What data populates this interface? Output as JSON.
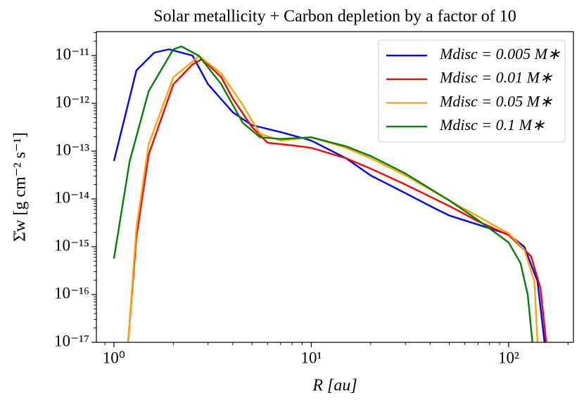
{
  "chart_data": {
    "type": "line",
    "title": "Solar metallicity + Carbon depletion by a factor of 10",
    "xlabel": "R [au]",
    "ylabel": "Σ̇w [g cm⁻² s⁻¹]",
    "xscale": "log",
    "yscale": "log",
    "xlim": [
      0.815,
      213
    ],
    "ylim": [
      1e-17,
      3.162e-11
    ],
    "xticks": [
      {
        "value": 1,
        "label": "10⁰"
      },
      {
        "value": 10,
        "label": "10¹"
      },
      {
        "value": 100,
        "label": "10²"
      }
    ],
    "yticks": [
      {
        "value": 1e-17,
        "label": "10⁻¹⁷"
      },
      {
        "value": 1e-16,
        "label": "10⁻¹⁶"
      },
      {
        "value": 1e-15,
        "label": "10⁻¹⁵"
      },
      {
        "value": 1e-14,
        "label": "10⁻¹⁴"
      },
      {
        "value": 1e-13,
        "label": "10⁻¹³"
      },
      {
        "value": 1e-12,
        "label": "10⁻¹²"
      },
      {
        "value": 1e-11,
        "label": "10⁻¹¹"
      }
    ],
    "legend": "upper right",
    "series": [
      {
        "name": "Mdisc = 0.005 M∗",
        "color": "#0000ff",
        "x": [
          1,
          1.3,
          1.6,
          1.9,
          2.5,
          3,
          4,
          5,
          7,
          10,
          15,
          20,
          30,
          40,
          50,
          70,
          100,
          120,
          140,
          152
        ],
        "values": [
          6.2e-14,
          4.9e-12,
          1.15e-11,
          1.35e-11,
          1e-11,
          2.5e-12,
          6.5e-13,
          3.5e-13,
          2.5e-13,
          1.66e-13,
          7.1e-14,
          3.1e-14,
          1.32e-14,
          7.1e-15,
          4.5e-15,
          2.9e-15,
          1.8e-15,
          1e-15,
          1.9e-16,
          1e-17
        ]
      },
      {
        "name": "Mdisc = 0.01 M∗",
        "color": "#ff0000",
        "x": [
          1.18,
          1.3,
          1.5,
          2,
          2.5,
          2.8,
          3.5,
          4,
          5,
          6,
          8,
          10,
          15,
          20,
          30,
          50,
          70,
          100,
          130,
          145,
          155
        ],
        "values": [
          1e-17,
          1.6e-15,
          8.5e-14,
          2.5e-12,
          6.5e-12,
          8.5e-12,
          3.5e-12,
          1.26e-12,
          3.2e-13,
          1.5e-13,
          1.32e-13,
          1.17e-13,
          7.1e-14,
          4.3e-14,
          2e-14,
          7.1e-15,
          3.4e-15,
          1.74e-15,
          6.3e-16,
          1.35e-16,
          1e-17
        ]
      },
      {
        "name": "Mdisc = 0.05 M∗",
        "color": "#ffa500",
        "x": [
          1.18,
          1.3,
          1.5,
          2,
          2.7,
          3.5,
          4.5,
          5.5,
          7,
          10,
          15,
          20,
          30,
          50,
          70,
          100,
          120,
          135,
          140
        ],
        "values": [
          1e-17,
          2.5e-15,
          1.4e-13,
          3.5e-12,
          9.8e-12,
          4.2e-12,
          9.1e-13,
          2.3e-13,
          1.66e-13,
          1.95e-13,
          1.17e-13,
          7.1e-14,
          3.1e-14,
          9.3e-15,
          4.3e-15,
          1.9e-15,
          8.7e-16,
          1.9e-16,
          1e-17
        ]
      },
      {
        "name": "Mdisc = 0.1 M∗",
        "color": "#008000",
        "x": [
          1,
          1.2,
          1.5,
          2,
          2.2,
          2.7,
          3.5,
          4.5,
          5.5,
          7,
          10,
          15,
          20,
          30,
          50,
          70,
          100,
          115,
          125,
          132
        ],
        "values": [
          5.6e-16,
          6e-14,
          1.8e-12,
          1.35e-11,
          1.55e-11,
          9.8e-12,
          2.5e-12,
          3.9e-13,
          1.95e-13,
          1.8e-13,
          1.95e-13,
          1.26e-13,
          7.9e-14,
          3.4e-14,
          9.3e-15,
          3.6e-15,
          1.23e-15,
          4.5e-16,
          9.8e-17,
          1e-17
        ]
      }
    ]
  }
}
